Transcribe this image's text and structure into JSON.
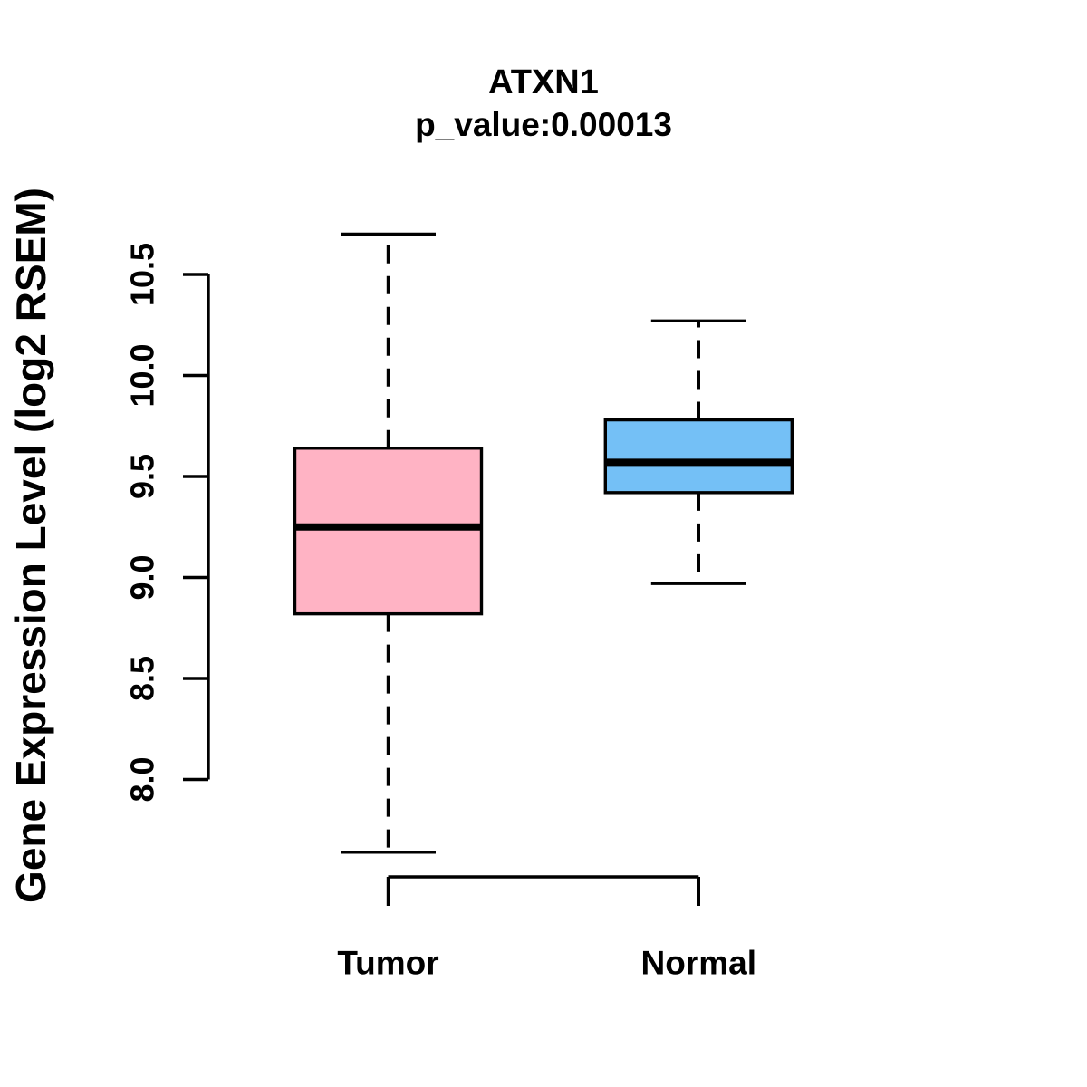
{
  "figure": {
    "background": "#FFFFFF",
    "stroke_color": "#000000"
  },
  "chart_data": {
    "type": "boxplot",
    "title": "ATXN1",
    "subtitle": "p_value:0.00013",
    "ylabel": "Gene Expression Level (log2 RSEM)",
    "xlabel": "",
    "categories": [
      "Tumor",
      "Normal"
    ],
    "yticks": [
      8.0,
      8.5,
      9.0,
      9.5,
      10.0,
      10.5
    ],
    "ytick_labels": [
      "8.0",
      "8.5",
      "9.0",
      "9.5",
      "10.0",
      "10.5"
    ],
    "ylim": [
      7.5,
      10.75
    ],
    "grid": false,
    "legend": "none",
    "series": [
      {
        "name": "Tumor",
        "fill": "#FFB3C4",
        "whisker_low": 7.64,
        "q1": 8.82,
        "median": 9.25,
        "q3": 9.64,
        "whisker_high": 10.7
      },
      {
        "name": "Normal",
        "fill": "#74C0F6",
        "whisker_low": 8.97,
        "q1": 9.42,
        "median": 9.57,
        "q3": 9.78,
        "whisker_high": 10.27
      }
    ]
  }
}
